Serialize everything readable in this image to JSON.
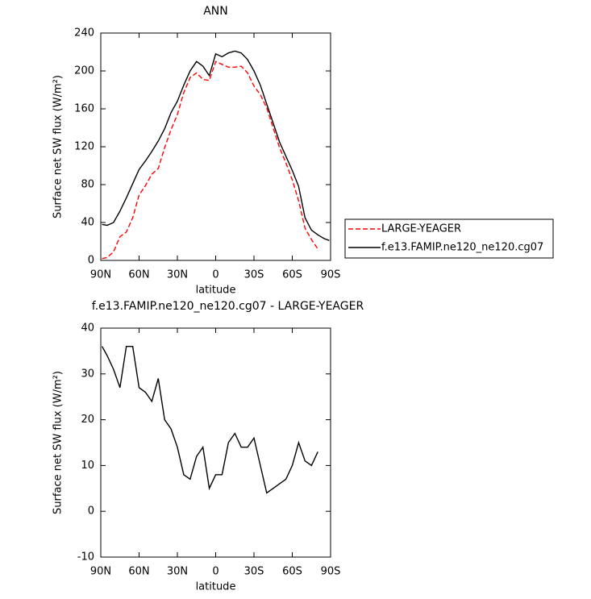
{
  "chart_data": [
    {
      "type": "line",
      "title": "ANN",
      "xlabel": "latitude",
      "ylabel": "Surface net SW flux (W/m²)",
      "x": [
        89,
        85,
        80,
        75,
        70,
        65,
        60,
        55,
        50,
        45,
        40,
        35,
        30,
        25,
        20,
        15,
        10,
        5,
        0,
        -5,
        -10,
        -15,
        -20,
        -25,
        -30,
        -35,
        -40,
        -45,
        -50,
        -55,
        -60,
        -65,
        -70,
        -75,
        -80,
        -85,
        -89
      ],
      "series": [
        {
          "name": "LARGE-YEAGER",
          "color": "#ff0000",
          "dash": true,
          "values": [
            2,
            3,
            9,
            25,
            30,
            45,
            69,
            79,
            91,
            97,
            119,
            138,
            154,
            177,
            193,
            198,
            191,
            190,
            210,
            207,
            204,
            204,
            205,
            198,
            184,
            175,
            161,
            140,
            119,
            103,
            85,
            63,
            34,
            22,
            12,
            null,
            null
          ]
        },
        {
          "name": "f.e13.FAMIP.ne120_ne120.cg07",
          "color": "#000000",
          "dash": false,
          "values": [
            38,
            37,
            40,
            52,
            66,
            81,
            96,
            105,
            115,
            126,
            139,
            156,
            168,
            185,
            200,
            210,
            205,
            195,
            218,
            215,
            219,
            221,
            219,
            212,
            200,
            185,
            165,
            145,
            125,
            110,
            95,
            78,
            45,
            32,
            27,
            23,
            21
          ]
        }
      ],
      "xlim": [
        90,
        -90
      ],
      "xticks": [
        {
          "value": 90,
          "label": "90N"
        },
        {
          "value": 60,
          "label": "60N"
        },
        {
          "value": 30,
          "label": "30N"
        },
        0,
        {
          "value": -30,
          "label": "30S"
        },
        {
          "value": -60,
          "label": "60S"
        },
        {
          "value": -90,
          "label": "90S"
        }
      ],
      "ylim": [
        0,
        240
      ],
      "yticks": [
        0,
        40,
        80,
        120,
        160,
        200,
        240
      ],
      "legend": "right"
    },
    {
      "type": "line",
      "title": "f.e13.FAMIP.ne120_ne120.cg07 - LARGE-YEAGER",
      "xlabel": "latitude",
      "ylabel": "Surface net SW flux (W/m²)",
      "x": [
        89,
        85,
        80,
        75,
        70,
        65,
        60,
        55,
        50,
        45,
        40,
        35,
        30,
        25,
        20,
        15,
        10,
        5,
        0,
        -5,
        -10,
        -15,
        -20,
        -25,
        -30,
        -35,
        -40,
        -45,
        -50,
        -55,
        -60,
        -65,
        -70,
        -75,
        -80
      ],
      "series": [
        {
          "color": "#000000",
          "dash": false,
          "values": [
            36,
            34,
            31,
            27,
            36,
            36,
            27,
            26,
            24,
            29,
            20,
            18,
            14,
            8,
            7,
            12,
            14,
            5,
            8,
            8,
            15,
            17,
            14,
            14,
            16,
            10,
            4,
            5,
            6,
            7,
            10,
            15,
            11,
            10,
            13
          ]
        }
      ],
      "xlim": [
        90,
        -90
      ],
      "xticks": [
        {
          "value": 90,
          "label": "90N"
        },
        {
          "value": 60,
          "label": "60N"
        },
        {
          "value": 30,
          "label": "30N"
        },
        0,
        {
          "value": -30,
          "label": "30S"
        },
        {
          "value": -60,
          "label": "60S"
        },
        {
          "value": -90,
          "label": "90S"
        }
      ],
      "ylim": [
        -10,
        40
      ],
      "yticks": [
        -10,
        0,
        10,
        20,
        30,
        40
      ]
    }
  ]
}
